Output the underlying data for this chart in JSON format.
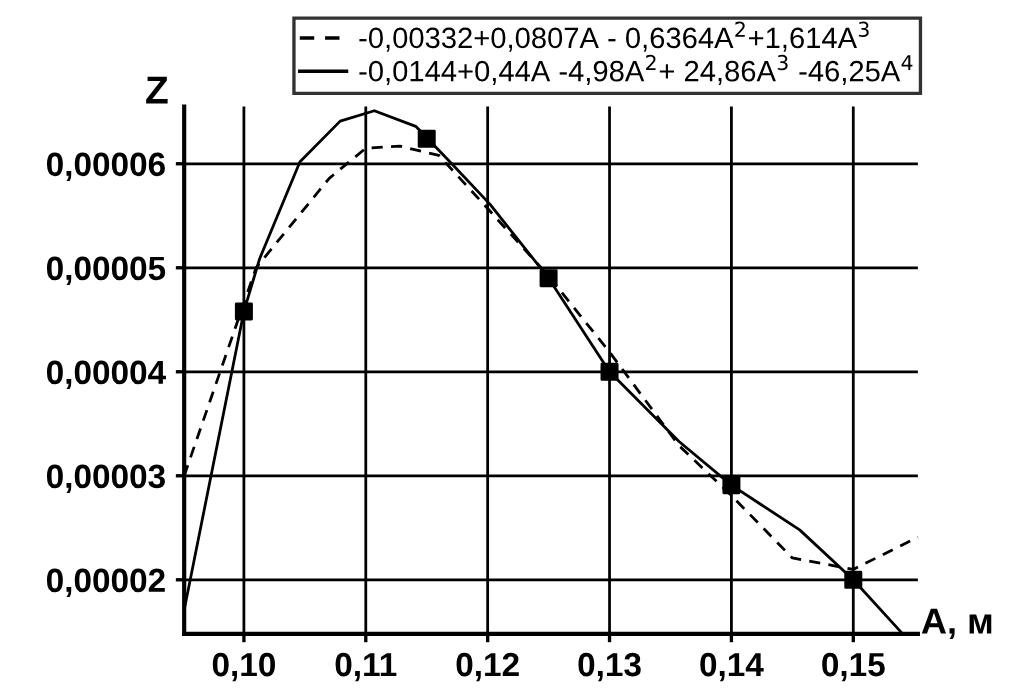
{
  "chart_data": {
    "type": "line",
    "xlabel": "A, м",
    "ylabel": "Z",
    "series": [
      {
        "name": "-0,00332+0,0807A - 0,6364A$^{2}$+1,614A$^{3}$",
        "color": "#000000",
        "line_style": "dashed",
        "marker": "none",
        "x": [
          0.0951,
          0.101,
          0.107,
          0.11,
          0.1128,
          0.116,
          0.12,
          0.125,
          0.13,
          0.1357,
          0.14,
          0.145,
          0.15,
          0.1553
        ],
        "values": [
          3e-05,
          5e-05,
          5.86e-05,
          6.15e-05,
          6.17e-05,
          6.08e-05,
          5.57e-05,
          4.92e-05,
          4.19e-05,
          3.29e-05,
          2.81e-05,
          2.21e-05,
          2.1e-05,
          2.41e-05
        ]
      },
      {
        "name": "-0,0144+0,44A -4,98A$^{2}$+ 24,86A$^{3}$ -46,25A$^{4}$",
        "color": "#000000",
        "line_style": "solid",
        "marker": "none",
        "x": [
          0.0951,
          0.1,
          0.1013,
          0.1046,
          0.1079,
          0.1107,
          0.1141,
          0.1169,
          0.1202,
          0.125,
          0.13,
          0.1357,
          0.14,
          0.1456,
          0.15,
          0.1539
        ],
        "values": [
          1.71e-05,
          4.58e-05,
          5.09e-05,
          6.02e-05,
          6.41e-05,
          6.51e-05,
          6.36e-05,
          6.02e-05,
          5.61e-05,
          4.9e-05,
          4e-05,
          3.33e-05,
          2.91e-05,
          2.48e-05,
          2e-05,
          1.5e-05
        ]
      },
      {
        "type": "scatter",
        "color": "#000000",
        "marker": "square",
        "x": [
          0.1,
          0.115,
          0.125,
          0.13,
          0.14,
          0.15
        ],
        "values": [
          4.58e-05,
          6.24e-05,
          4.9e-05,
          4e-05,
          2.91e-05,
          2e-05
        ]
      }
    ],
    "xlim": [
      0.0951,
      0.1553
    ],
    "ylim": [
      1.48e-05,
      6.55e-05
    ],
    "xticks": [
      {
        "value": 0.1,
        "label": "0,10"
      },
      {
        "value": 0.11,
        "label": "0,11"
      },
      {
        "value": 0.12,
        "label": "0,12"
      },
      {
        "value": 0.13,
        "label": "0,13"
      },
      {
        "value": 0.14,
        "label": "0,14"
      },
      {
        "value": 0.15,
        "label": "0,15"
      }
    ],
    "yticks": [
      {
        "value": 2e-05,
        "label": "0,00002"
      },
      {
        "value": 3e-05,
        "label": "0,00003"
      },
      {
        "value": 4e-05,
        "label": "0,00004"
      },
      {
        "value": 5e-05,
        "label": "0,00005"
      },
      {
        "value": 6e-05,
        "label": "0,00006"
      }
    ],
    "grid": true,
    "legend": "top"
  }
}
